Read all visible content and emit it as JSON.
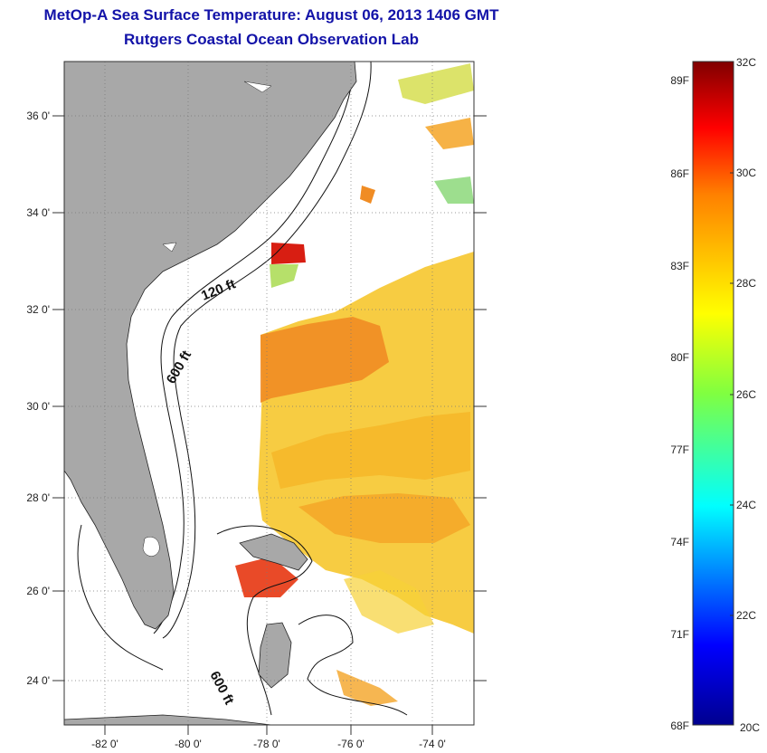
{
  "title": {
    "line1": "MetOp-A Sea Surface Temperature:  August 06, 2013 1406 GMT",
    "line2": "Rutgers Coastal Ocean Observation Lab"
  },
  "map": {
    "lat_labels": [
      "36 0'",
      "34 0'",
      "32 0'",
      "30 0'",
      "28 0'",
      "26 0'",
      "24 0'"
    ],
    "lon_labels": [
      "-82 0'",
      "-80 0'",
      "-78 0'",
      "-76 0'",
      "-74 0'"
    ],
    "contour_labels": [
      "120 ft",
      "600 ft",
      "600 ft"
    ]
  },
  "colorbar": {
    "fahrenheit_labels": [
      "89F",
      "86F",
      "83F",
      "80F",
      "77F",
      "74F",
      "71F",
      "68F"
    ],
    "celsius_labels": [
      "32C",
      "30C",
      "28C",
      "26C",
      "24C",
      "22C",
      "20C"
    ],
    "min_c": 20,
    "max_c": 32
  },
  "colors": {
    "title": "#1212a8",
    "land": "#a8a8a8",
    "ocean": "#ffffff",
    "sst_warm": "#f2a41a",
    "sst_hot": "#d81e12",
    "sst_cool": "#f7d62a"
  }
}
